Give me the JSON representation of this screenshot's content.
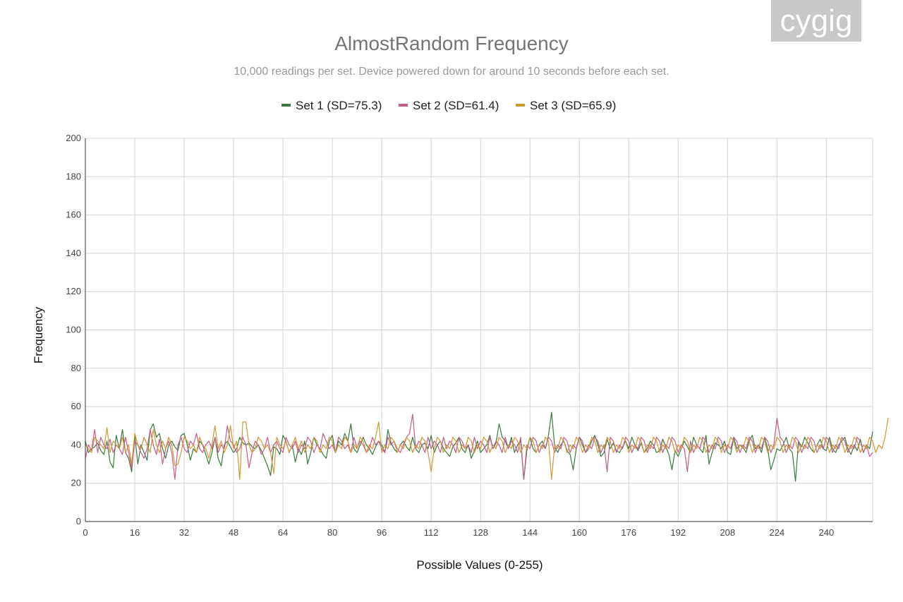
{
  "watermark": "cygig",
  "chart_data": {
    "type": "line",
    "title": "AlmostRandom Frequency",
    "subtitle": "10,000 readings per set. Device powered down for around 10 seconds before each set.",
    "xlabel": "Possible Values (0-255)",
    "ylabel": "Frequency",
    "xlim": [
      0,
      255
    ],
    "ylim": [
      0,
      200
    ],
    "x_ticks": [
      0,
      16,
      32,
      48,
      64,
      80,
      96,
      112,
      128,
      144,
      160,
      176,
      192,
      208,
      224,
      240
    ],
    "y_ticks": [
      0,
      20,
      40,
      60,
      80,
      100,
      120,
      140,
      160,
      180,
      200
    ],
    "grid": true,
    "legend_position": "top",
    "series": [
      {
        "name": "Set 1 (SD=75.3)",
        "color": "#3a7a3e",
        "values": [
          42,
          36,
          38,
          39,
          41,
          37,
          35,
          42,
          31,
          28,
          45,
          38,
          48,
          36,
          33,
          26,
          45,
          30,
          40,
          36,
          32,
          48,
          51,
          44,
          46,
          38,
          33,
          40,
          42,
          39,
          37,
          45,
          46,
          40,
          32,
          38,
          36,
          42,
          40,
          35,
          30,
          36,
          44,
          33,
          29,
          40,
          42,
          39,
          36,
          38,
          44,
          41,
          40,
          41,
          39,
          38,
          40,
          37,
          33,
          29,
          24,
          39,
          38,
          35,
          45,
          42,
          36,
          40,
          31,
          38,
          35,
          42,
          30,
          36,
          44,
          40,
          38,
          35,
          33,
          42,
          45,
          36,
          42,
          40,
          46,
          42,
          51,
          38,
          36,
          40,
          44,
          40,
          38,
          35,
          39,
          42,
          40,
          36,
          48,
          41,
          38,
          36,
          40,
          42,
          39,
          37,
          44,
          38,
          36,
          40,
          41,
          38,
          45,
          36,
          40,
          42,
          38,
          36,
          34,
          39,
          41,
          44,
          38,
          36,
          40,
          33,
          37,
          42,
          36,
          38,
          40,
          45,
          38,
          41,
          51,
          44,
          42,
          38,
          44,
          36,
          40,
          42,
          22,
          37,
          44,
          38,
          36,
          40,
          42,
          38,
          45,
          57,
          39,
          36,
          40,
          42,
          37,
          35,
          27,
          38,
          44,
          40,
          36,
          38,
          42,
          45,
          40,
          34,
          36,
          43,
          38,
          41,
          37,
          36,
          39,
          42,
          38,
          44,
          40,
          37,
          41,
          36,
          38,
          42,
          40,
          36,
          37,
          43,
          39,
          35,
          27,
          37,
          34,
          38,
          42,
          39,
          36,
          44,
          40,
          38,
          36,
          45,
          30,
          36,
          41,
          40,
          38,
          42,
          36,
          35,
          44,
          38,
          40,
          39,
          36,
          42,
          45,
          38,
          40,
          36,
          44,
          38,
          27,
          32,
          38,
          37,
          40,
          44,
          38,
          36,
          21,
          42,
          39,
          44,
          41,
          38,
          36,
          40,
          43,
          38,
          37,
          44,
          38,
          36,
          40,
          42,
          44,
          38,
          35,
          40,
          37,
          43,
          36,
          40,
          38,
          47
        ]
      },
      {
        "name": "Set 2 (SD=61.4)",
        "color": "#c95b8c",
        "values": [
          33,
          40,
          37,
          48,
          36,
          44,
          40,
          38,
          43,
          36,
          40,
          38,
          35,
          44,
          36,
          28,
          42,
          40,
          36,
          33,
          38,
          48,
          40,
          35,
          43,
          30,
          38,
          42,
          36,
          22,
          40,
          44,
          38,
          36,
          42,
          40,
          46,
          38,
          36,
          40,
          42,
          38,
          44,
          36,
          40,
          38,
          50,
          42,
          40,
          36,
          38,
          44,
          40,
          28,
          36,
          42,
          40,
          35,
          38,
          44,
          36,
          40,
          42,
          38,
          36,
          44,
          40,
          38,
          42,
          36,
          40,
          38,
          44,
          42,
          36,
          40,
          38,
          46,
          42,
          38,
          40,
          36,
          44,
          42,
          38,
          40,
          36,
          44,
          38,
          42,
          40,
          36,
          38,
          44,
          40,
          42,
          38,
          36,
          44,
          40,
          42,
          38,
          36,
          40,
          44,
          46,
          56,
          38,
          42,
          40,
          36,
          44,
          38,
          42,
          40,
          36,
          44,
          38,
          42,
          40,
          36,
          44,
          42,
          38,
          40,
          36,
          44,
          38,
          42,
          40,
          36,
          44,
          38,
          42,
          40,
          36,
          44,
          38,
          42,
          40,
          36,
          44,
          22,
          40,
          38,
          44,
          42,
          36,
          40,
          38,
          44,
          42,
          36,
          40,
          38,
          44,
          42,
          36,
          40,
          38,
          44,
          42,
          36,
          40,
          38,
          44,
          42,
          36,
          40,
          26,
          44,
          42,
          36,
          40,
          38,
          44,
          42,
          36,
          40,
          38,
          44,
          42,
          36,
          40,
          38,
          44,
          42,
          36,
          40,
          38,
          44,
          42,
          36,
          40,
          38,
          26,
          42,
          36,
          40,
          38,
          44,
          42,
          36,
          40,
          38,
          44,
          42,
          36,
          40,
          38,
          44,
          42,
          36,
          40,
          38,
          44,
          42,
          36,
          40,
          38,
          44,
          42,
          36,
          40,
          54,
          44,
          42,
          36,
          40,
          38,
          44,
          42,
          36,
          40,
          38,
          44,
          42,
          36,
          40,
          38,
          44,
          42,
          36,
          40,
          38,
          44,
          42,
          36,
          40,
          38,
          44,
          42,
          36,
          40,
          34,
          36
        ]
      },
      {
        "name": "Set 3 (SD=65.9)",
        "color": "#d09735",
        "values": [
          40,
          38,
          36,
          44,
          42,
          40,
          38,
          49,
          36,
          42,
          40,
          38,
          44,
          36,
          40,
          30,
          46,
          40,
          38,
          44,
          40,
          36,
          48,
          40,
          36,
          42,
          38,
          44,
          40,
          29,
          30,
          36,
          44,
          42,
          38,
          40,
          36,
          44,
          40,
          38,
          33,
          40,
          50,
          38,
          42,
          36,
          40,
          50,
          38,
          42,
          22,
          52,
          52,
          40,
          36,
          38,
          44,
          42,
          38,
          40,
          36,
          25,
          44,
          40,
          38,
          42,
          36,
          40,
          44,
          38,
          42,
          36,
          40,
          38,
          44,
          42,
          36,
          40,
          38,
          44,
          42,
          36,
          40,
          38,
          44,
          42,
          36,
          40,
          38,
          44,
          42,
          36,
          40,
          38,
          44,
          52,
          36,
          40,
          38,
          44,
          42,
          36,
          40,
          38,
          44,
          42,
          36,
          40,
          38,
          44,
          42,
          36,
          26,
          38,
          44,
          42,
          36,
          40,
          38,
          44,
          42,
          36,
          40,
          38,
          44,
          42,
          36,
          40,
          38,
          44,
          42,
          36,
          40,
          38,
          44,
          42,
          36,
          40,
          38,
          44,
          42,
          36,
          40,
          38,
          44,
          42,
          36,
          40,
          38,
          44,
          42,
          22,
          40,
          38,
          44,
          42,
          36,
          40,
          38,
          44,
          42,
          36,
          40,
          38,
          44,
          42,
          36,
          40,
          38,
          44,
          42,
          36,
          40,
          38,
          44,
          42,
          36,
          40,
          38,
          44,
          42,
          36,
          40,
          38,
          44,
          42,
          36,
          40,
          38,
          44,
          42,
          36,
          40,
          38,
          44,
          42,
          36,
          40,
          38,
          44,
          42,
          36,
          40,
          38,
          44,
          42,
          36,
          40,
          38,
          44,
          42,
          36,
          40,
          38,
          44,
          42,
          36,
          40,
          38,
          44,
          42,
          36,
          40,
          38,
          44,
          42,
          36,
          40,
          38,
          44,
          42,
          36,
          40,
          38,
          44,
          42,
          36,
          40,
          38,
          44,
          42,
          36,
          40,
          38,
          44,
          42,
          36,
          40,
          38,
          44,
          42,
          36,
          40,
          38,
          44,
          42,
          36,
          40,
          38,
          44,
          54
        ]
      }
    ]
  }
}
